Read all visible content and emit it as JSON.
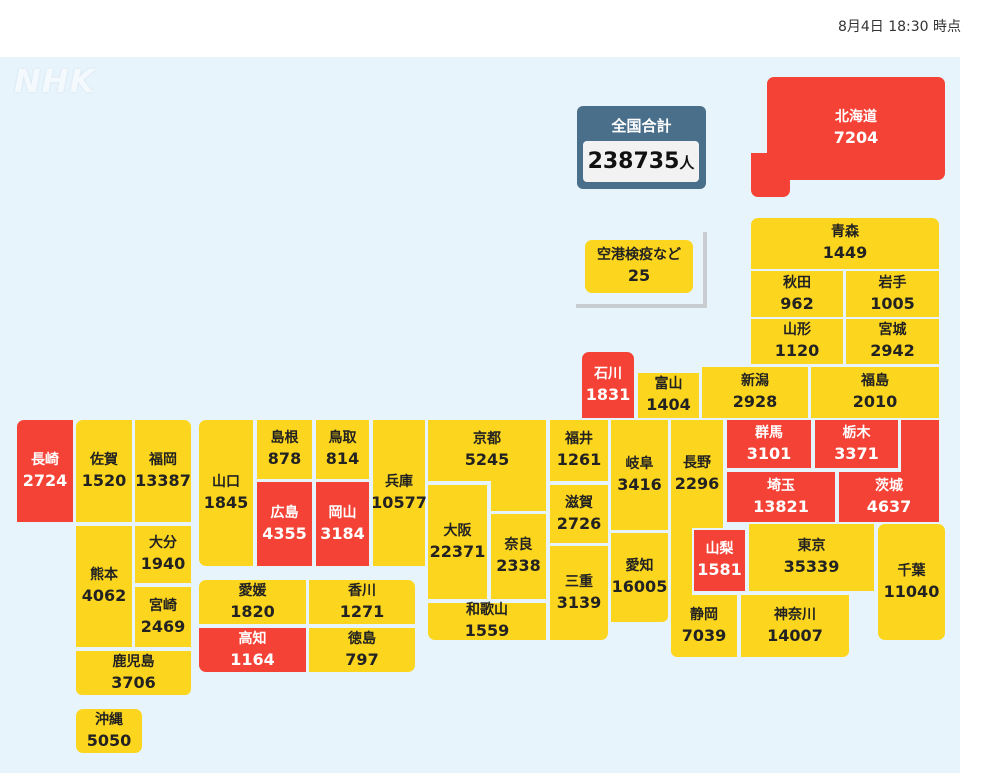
{
  "timestamp": "8月4日 18:30 時点",
  "logo": "NHK",
  "total": {
    "label": "全国合計",
    "value": "238735",
    "unit": "人"
  },
  "colors": {
    "red": "#f44336",
    "yellow": "#fbd51e",
    "total_box": "#4a6f8a",
    "background": "#e8f4fc"
  },
  "prefectures": [
    {
      "key": "hokkaido",
      "name": "北海道",
      "count": "7204",
      "level": "red"
    },
    {
      "key": "airport",
      "name": "空港検疫など",
      "count": "25",
      "level": "yellow"
    },
    {
      "key": "aomori",
      "name": "青森",
      "count": "1449",
      "level": "yellow"
    },
    {
      "key": "akita",
      "name": "秋田",
      "count": "962",
      "level": "yellow"
    },
    {
      "key": "iwate",
      "name": "岩手",
      "count": "1005",
      "level": "yellow"
    },
    {
      "key": "yamagata",
      "name": "山形",
      "count": "1120",
      "level": "yellow"
    },
    {
      "key": "miyagi",
      "name": "宮城",
      "count": "2942",
      "level": "yellow"
    },
    {
      "key": "ishikawa",
      "name": "石川",
      "count": "1831",
      "level": "red"
    },
    {
      "key": "toyama",
      "name": "富山",
      "count": "1404",
      "level": "yellow"
    },
    {
      "key": "niigata",
      "name": "新潟",
      "count": "2928",
      "level": "yellow"
    },
    {
      "key": "fukushima",
      "name": "福島",
      "count": "2010",
      "level": "yellow"
    },
    {
      "key": "nagasaki",
      "name": "長崎",
      "count": "2724",
      "level": "red"
    },
    {
      "key": "saga",
      "name": "佐賀",
      "count": "1520",
      "level": "yellow"
    },
    {
      "key": "fukuoka",
      "name": "福岡",
      "count": "13387",
      "level": "yellow"
    },
    {
      "key": "kumamoto",
      "name": "熊本",
      "count": "4062",
      "level": "yellow"
    },
    {
      "key": "oita",
      "name": "大分",
      "count": "1940",
      "level": "yellow"
    },
    {
      "key": "miyazaki",
      "name": "宮崎",
      "count": "2469",
      "level": "yellow"
    },
    {
      "key": "kagoshima",
      "name": "鹿児島",
      "count": "3706",
      "level": "yellow"
    },
    {
      "key": "okinawa",
      "name": "沖縄",
      "count": "5050",
      "level": "yellow"
    },
    {
      "key": "yamaguchi",
      "name": "山口",
      "count": "1845",
      "level": "yellow"
    },
    {
      "key": "shimane",
      "name": "島根",
      "count": "878",
      "level": "yellow"
    },
    {
      "key": "tottori",
      "name": "鳥取",
      "count": "814",
      "level": "yellow"
    },
    {
      "key": "hiroshima",
      "name": "広島",
      "count": "4355",
      "level": "red"
    },
    {
      "key": "okayama",
      "name": "岡山",
      "count": "3184",
      "level": "red"
    },
    {
      "key": "hyogo",
      "name": "兵庫",
      "count": "10577",
      "level": "yellow"
    },
    {
      "key": "ehime",
      "name": "愛媛",
      "count": "1820",
      "level": "yellow"
    },
    {
      "key": "kagawa",
      "name": "香川",
      "count": "1271",
      "level": "yellow"
    },
    {
      "key": "kochi",
      "name": "高知",
      "count": "1164",
      "level": "red"
    },
    {
      "key": "tokushima",
      "name": "徳島",
      "count": "797",
      "level": "yellow"
    },
    {
      "key": "kyoto",
      "name": "京都",
      "count": "5245",
      "level": "yellow"
    },
    {
      "key": "osaka",
      "name": "大阪",
      "count": "22371",
      "level": "yellow"
    },
    {
      "key": "nara",
      "name": "奈良",
      "count": "2338",
      "level": "yellow"
    },
    {
      "key": "wakayama",
      "name": "和歌山",
      "count": "1559",
      "level": "yellow"
    },
    {
      "key": "fukui",
      "name": "福井",
      "count": "1261",
      "level": "yellow"
    },
    {
      "key": "shiga",
      "name": "滋賀",
      "count": "2726",
      "level": "yellow"
    },
    {
      "key": "mie",
      "name": "三重",
      "count": "3139",
      "level": "yellow"
    },
    {
      "key": "gifu",
      "name": "岐阜",
      "count": "3416",
      "level": "yellow"
    },
    {
      "key": "aichi",
      "name": "愛知",
      "count": "16005",
      "level": "yellow"
    },
    {
      "key": "nagano",
      "name": "長野",
      "count": "2296",
      "level": "yellow"
    },
    {
      "key": "gunma",
      "name": "群馬",
      "count": "3101",
      "level": "red"
    },
    {
      "key": "tochigi",
      "name": "栃木",
      "count": "3371",
      "level": "red"
    },
    {
      "key": "saitama",
      "name": "埼玉",
      "count": "13821",
      "level": "red"
    },
    {
      "key": "ibaraki",
      "name": "茨城",
      "count": "4637",
      "level": "red"
    },
    {
      "key": "yamanashi",
      "name": "山梨",
      "count": "1581",
      "level": "red"
    },
    {
      "key": "tokyo",
      "name": "東京",
      "count": "35339",
      "level": "yellow"
    },
    {
      "key": "chiba",
      "name": "千葉",
      "count": "11040",
      "level": "yellow"
    },
    {
      "key": "shizuoka",
      "name": "静岡",
      "count": "7039",
      "level": "yellow"
    },
    {
      "key": "kanagawa",
      "name": "神奈川",
      "count": "14007",
      "level": "yellow"
    }
  ]
}
